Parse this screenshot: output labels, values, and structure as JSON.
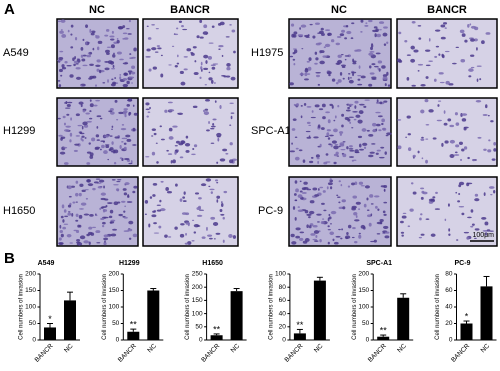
{
  "panel_a": {
    "label": "A",
    "columns": [
      "NC",
      "BANCR"
    ],
    "left_rows": [
      "A549",
      "H1299",
      "H1650"
    ],
    "right_rows": [
      "H1975",
      "SPC-A1",
      "PC-9"
    ],
    "scale_bar": "100μm"
  },
  "panel_b_label": "B",
  "chart_data": [
    {
      "type": "bar",
      "title": "A549",
      "y_label": "Cell numbers of invasion",
      "categories": [
        "BANCR",
        "NC"
      ],
      "values": [
        38,
        120
      ],
      "errors": [
        12,
        25
      ],
      "annotation": "*",
      "color": "#000000",
      "ylim": [
        0,
        200
      ],
      "yticks": [
        0,
        50,
        100,
        150,
        200
      ]
    },
    {
      "type": "bar",
      "title": "H1299",
      "y_label": "Cell numbers of invasion",
      "categories": [
        "BANCR",
        "NC"
      ],
      "values": [
        25,
        150
      ],
      "errors": [
        8,
        6
      ],
      "annotation": "**",
      "color": "#000000",
      "ylim": [
        0,
        200
      ],
      "yticks": [
        0,
        50,
        100,
        150,
        200
      ]
    },
    {
      "type": "bar",
      "title": "H1650",
      "y_label": "Cell numbers of invasion",
      "categories": [
        "BANCR",
        "NC"
      ],
      "values": [
        18,
        185
      ],
      "errors": [
        5,
        10
      ],
      "annotation": "**",
      "color": "#000000",
      "ylim": [
        0,
        250
      ],
      "yticks": [
        0,
        50,
        100,
        150,
        200,
        250
      ]
    },
    {
      "type": "bar",
      "y_label": "Cell numbers of invasion",
      "categories": [
        "BANCR",
        "NC"
      ],
      "values": [
        10,
        90
      ],
      "errors": [
        6,
        5
      ],
      "annotation": "**",
      "color": "#000000",
      "ylim": [
        0,
        100
      ],
      "yticks": [
        0,
        20,
        40,
        60,
        80,
        100
      ]
    },
    {
      "type": "bar",
      "title": "SPC-A1",
      "y_label": "Cell numbers of invasion",
      "categories": [
        "BANCR",
        "NC"
      ],
      "values": [
        10,
        128
      ],
      "errors": [
        5,
        12
      ],
      "annotation": "**",
      "color": "#000000",
      "ylim": [
        0,
        200
      ],
      "yticks": [
        0,
        50,
        100,
        150,
        200
      ]
    },
    {
      "type": "bar",
      "title": "PC-9",
      "y_label": "Cell numbers of invasion",
      "categories": [
        "BANCR",
        "NC"
      ],
      "values": [
        20,
        65
      ],
      "errors": [
        3,
        12
      ],
      "annotation": "*",
      "color": "#000000",
      "ylim": [
        0,
        80
      ],
      "yticks": [
        0,
        20,
        40,
        60,
        80
      ]
    }
  ]
}
